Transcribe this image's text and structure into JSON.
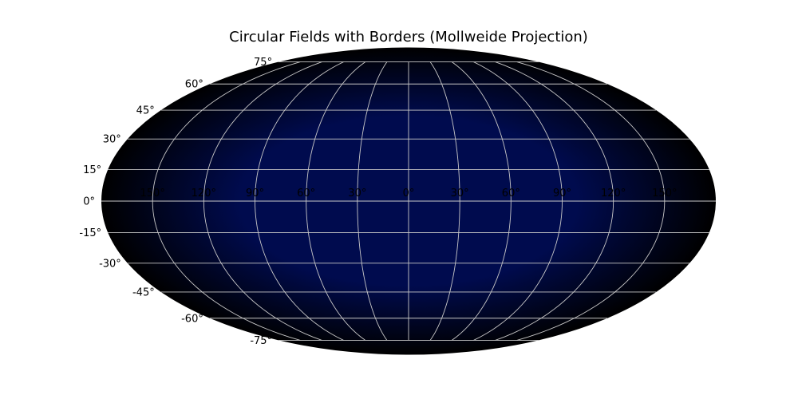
{
  "chart_data": {
    "type": "map",
    "title": "Circular Fields with Borders (Mollweide Projection)",
    "projection": "mollweide",
    "grid": true,
    "background_colors": {
      "center": "#000b4e",
      "edge": "#000000"
    },
    "grid_color": "#c8c8c8",
    "latitude_ticks": [
      {
        "value": 75,
        "label": "75°"
      },
      {
        "value": 60,
        "label": "60°"
      },
      {
        "value": 45,
        "label": "45°"
      },
      {
        "value": 30,
        "label": "30°"
      },
      {
        "value": 15,
        "label": "15°"
      },
      {
        "value": 0,
        "label": "0°"
      },
      {
        "value": -15,
        "label": "-15°"
      },
      {
        "value": -30,
        "label": "-30°"
      },
      {
        "value": -45,
        "label": "-45°"
      },
      {
        "value": -60,
        "label": "-60°"
      },
      {
        "value": -75,
        "label": "-75°"
      }
    ],
    "longitude_ticks": [
      {
        "value": -150,
        "label": "150°"
      },
      {
        "value": -120,
        "label": "120°"
      },
      {
        "value": -90,
        "label": "90°"
      },
      {
        "value": -60,
        "label": "60°"
      },
      {
        "value": -30,
        "label": "30°"
      },
      {
        "value": 0,
        "label": "0°"
      },
      {
        "value": 30,
        "label": "30°"
      },
      {
        "value": 60,
        "label": "60°"
      },
      {
        "value": 90,
        "label": "90°"
      },
      {
        "value": 120,
        "label": "120°"
      },
      {
        "value": 150,
        "label": "150°"
      }
    ]
  }
}
